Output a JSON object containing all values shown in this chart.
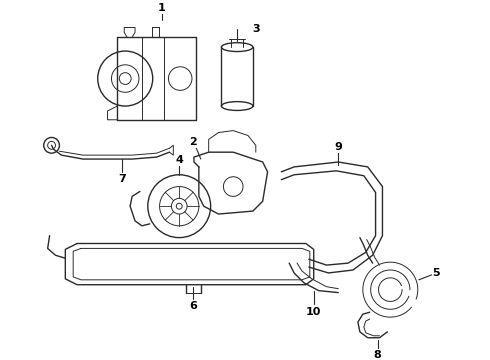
{
  "background_color": "#ffffff",
  "line_color": "#2a2a2a",
  "label_color": "#000000",
  "fig_width": 4.9,
  "fig_height": 3.6,
  "dpi": 100
}
